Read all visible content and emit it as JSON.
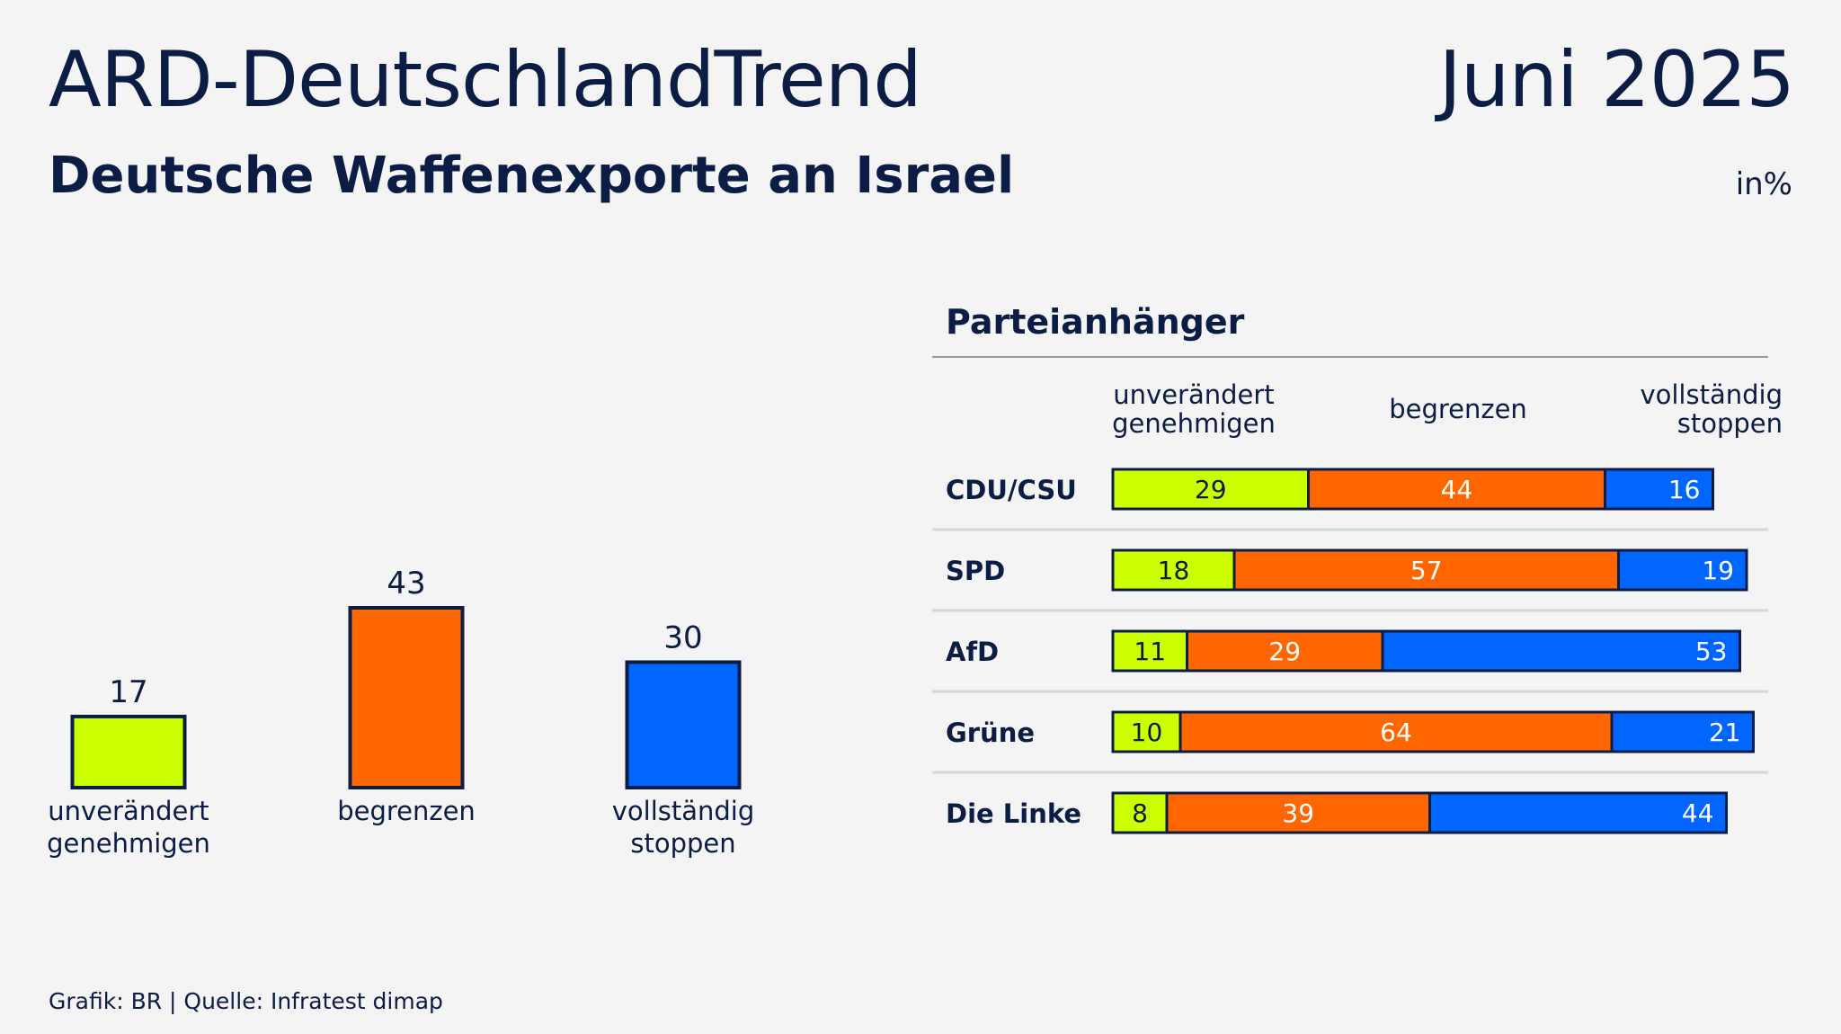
{
  "header": {
    "title": "ARD-DeutschlandTrend",
    "date": "Juni 2025",
    "subtitle": "Deutsche Waffenexporte an Israel",
    "unit": "in%"
  },
  "footer": {
    "source": "Grafik: BR | Quelle: Infratest dimap"
  },
  "colors": {
    "unveraendert": "#ccff00",
    "begrenzen": "#ff6600",
    "stoppen": "#0066ff",
    "outline": "#0b1c45"
  },
  "chart_data": [
    {
      "type": "bar",
      "categories": [
        [
          "unverändert",
          "genehmigen"
        ],
        [
          "begrenzen"
        ],
        [
          "vollständig",
          "stoppen"
        ]
      ],
      "values": [
        17,
        43,
        30
      ],
      "ylim": [
        0,
        43
      ]
    },
    {
      "type": "bar",
      "stacked": true,
      "orientation": "horizontal",
      "title": "Parteianhänger",
      "series_labels": [
        [
          "unverändert",
          "genehmigen"
        ],
        [
          "begrenzen"
        ],
        [
          "vollständig",
          "stoppen"
        ]
      ],
      "categories": [
        "CDU/CSU",
        "SPD",
        "AfD",
        "Grüne",
        "Die Linke"
      ],
      "series": [
        {
          "values": [
            29,
            18,
            11,
            10,
            8
          ]
        },
        {
          "values": [
            44,
            57,
            29,
            64,
            39
          ]
        },
        {
          "values": [
            16,
            19,
            53,
            21,
            44
          ]
        }
      ],
      "xlim": [
        0,
        100
      ]
    }
  ]
}
